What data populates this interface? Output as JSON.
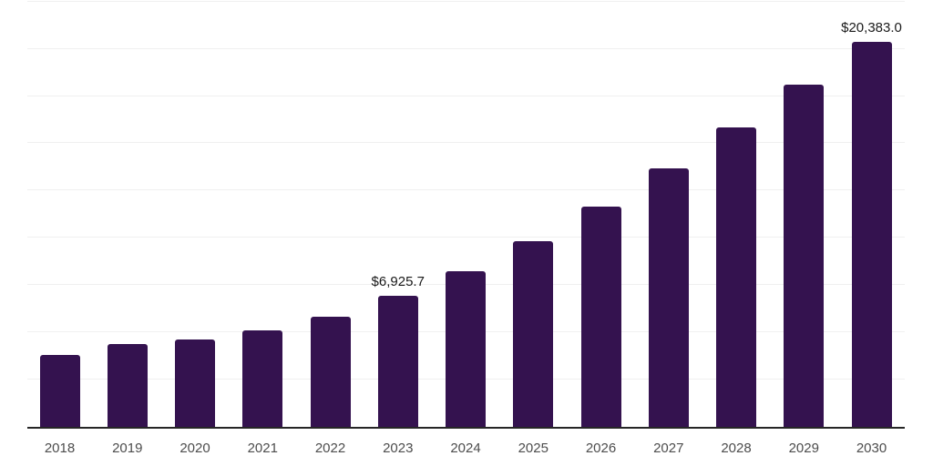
{
  "chart_data": {
    "type": "bar",
    "title": "",
    "xlabel": "",
    "ylabel": "",
    "categories": [
      "2018",
      "2019",
      "2020",
      "2021",
      "2022",
      "2023",
      "2024",
      "2025",
      "2026",
      "2027",
      "2028",
      "2029",
      "2030"
    ],
    "values": [
      3800,
      4370,
      4640,
      5090,
      5840,
      6925.7,
      8220,
      9820,
      11640,
      13680,
      15840,
      18120,
      20383.0
    ],
    "data_labels": {
      "2023": "$6,925.7",
      "2030": "$20,383.0"
    },
    "ylim": [
      0,
      22580
    ],
    "gridline_interval": 2500,
    "grid": true,
    "legend": false,
    "y_axis_labels_visible": false,
    "colors": {
      "bar": "#34124f",
      "gridline": "#f0f0f0",
      "axis": "#262626",
      "tick_label": "#4d4d4d",
      "value_label": "#1a1a1a",
      "background": "#ffffff"
    }
  }
}
